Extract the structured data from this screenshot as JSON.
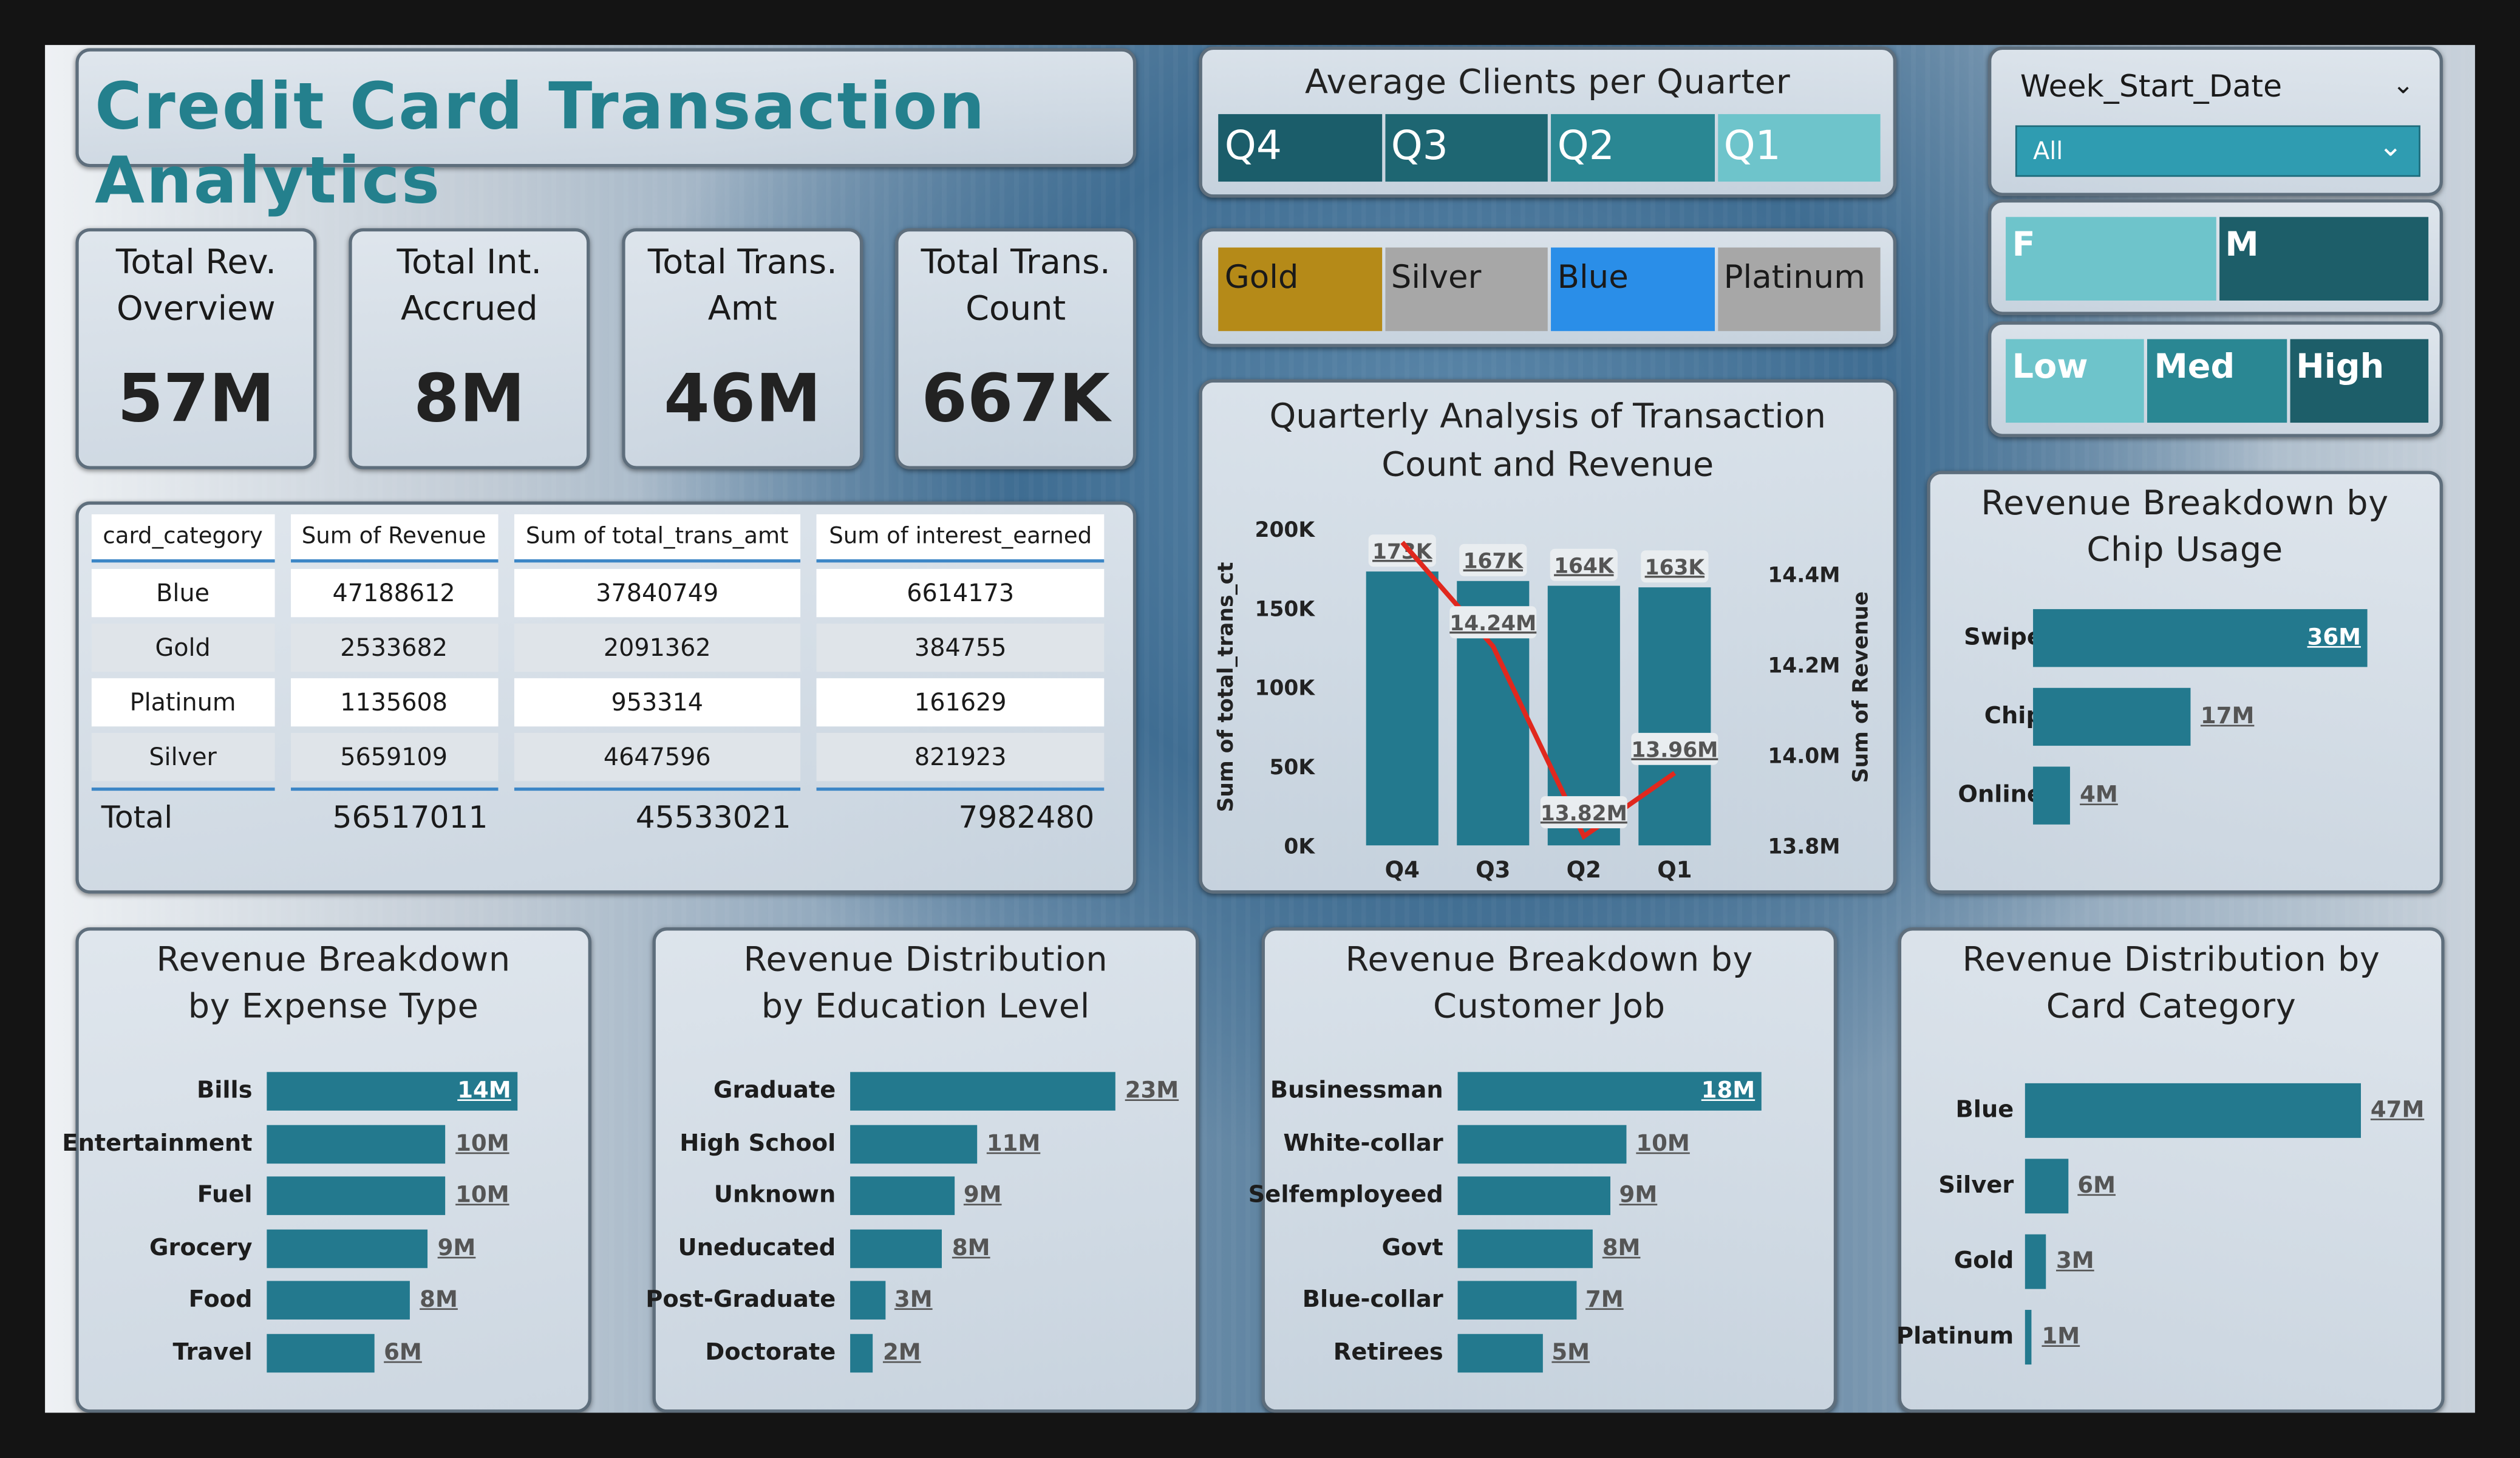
{
  "title": "Credit Card Transaction Analytics",
  "kpis": [
    {
      "label": "Total Rev.\nOverview",
      "value": "57M"
    },
    {
      "label": "Total Int.\nAccrued",
      "value": "8M"
    },
    {
      "label": "Total Trans.\nAmt",
      "value": "46M"
    },
    {
      "label": "Total Trans.\nCount",
      "value": "667K"
    }
  ],
  "avg_clients": {
    "title": "Average Clients per Quarter",
    "items": [
      "Q4",
      "Q3",
      "Q2",
      "Q1"
    ],
    "colors": [
      "#1b5d6a",
      "#1e6672",
      "#2a8793",
      "#6ec4cb"
    ]
  },
  "card_slicer": {
    "items": [
      "Gold",
      "Silver",
      "Blue",
      "Platinum"
    ],
    "colors": [
      "#b58a18",
      "#a7a7a7",
      "#2a8ee8",
      "#a7a7a7"
    ]
  },
  "week_filter": {
    "label": "Week_Start_Date",
    "value": "All"
  },
  "gender_slicer": {
    "items": [
      "F",
      "M"
    ]
  },
  "income_slicer": {
    "items": [
      "Low",
      "Med",
      "High"
    ]
  },
  "table": {
    "headers": [
      "card_category",
      "Sum of Revenue",
      "Sum of total_trans_amt",
      "Sum of interest_earned"
    ],
    "rows": [
      [
        "Blue",
        "47188612",
        "37840749",
        "6614173"
      ],
      [
        "Gold",
        "2533682",
        "2091362",
        "384755"
      ],
      [
        "Platinum",
        "1135608",
        "953314",
        "161629"
      ],
      [
        "Silver",
        "5659109",
        "4647596",
        "821923"
      ]
    ],
    "total": [
      "Total",
      "56517011",
      "45533021",
      "7982480"
    ]
  },
  "chart_data": [
    {
      "type": "bar+line",
      "title": "Quarterly Analysis of Transaction Count and Revenue",
      "categories": [
        "Q4",
        "Q3",
        "Q2",
        "Q1"
      ],
      "series": [
        {
          "name": "total_trans_ct",
          "values": [
            173000,
            167000,
            164000,
            163000
          ],
          "labels": [
            "173K",
            "167K",
            "164K",
            "163K"
          ]
        },
        {
          "name": "Revenue",
          "values": [
            14.47,
            14.24,
            13.82,
            13.96
          ],
          "labels": [
            "",
            "14.24M",
            "13.82M",
            "13.96M"
          ]
        }
      ],
      "ylabel": "Sum of total_trans_ct",
      "y2label": "Sum of Revenue",
      "ylim": [
        0,
        200000
      ],
      "y2lim": [
        13.8,
        14.5
      ],
      "yticks": [
        "0K",
        "50K",
        "100K",
        "150K",
        "200K"
      ],
      "y2ticks": [
        "13.8M",
        "14.0M",
        "14.2M",
        "14.4M"
      ]
    },
    {
      "type": "bar",
      "title": "Revenue Breakdown by Chip Usage",
      "categories": [
        "Swipe",
        "Chip",
        "Online"
      ],
      "values": [
        36,
        17,
        4
      ],
      "labels": [
        "36M",
        "17M",
        "4M"
      ]
    },
    {
      "type": "bar",
      "title": "Revenue Breakdown by Expense Type",
      "categories": [
        "Bills",
        "Entertainment",
        "Fuel",
        "Grocery",
        "Food",
        "Travel"
      ],
      "values": [
        14,
        10,
        10,
        9,
        8,
        6
      ],
      "labels": [
        "14M",
        "10M",
        "10M",
        "9M",
        "8M",
        "6M"
      ]
    },
    {
      "type": "bar",
      "title": "Revenue Distribution by Education Level",
      "categories": [
        "Graduate",
        "High School",
        "Unknown",
        "Uneducated",
        "Post-Graduate",
        "Doctorate"
      ],
      "values": [
        23,
        11,
        9,
        8,
        3,
        2
      ],
      "labels": [
        "23M",
        "11M",
        "9M",
        "8M",
        "3M",
        "2M"
      ]
    },
    {
      "type": "bar",
      "title": "Revenue Breakdown by Customer Job",
      "categories": [
        "Businessman",
        "White-collar",
        "Selfemployeed",
        "Govt",
        "Blue-collar",
        "Retirees"
      ],
      "values": [
        18,
        10,
        9,
        8,
        7,
        5
      ],
      "labels": [
        "18M",
        "10M",
        "9M",
        "8M",
        "7M",
        "5M"
      ]
    },
    {
      "type": "bar",
      "title": "Revenue Distribution by Card Category",
      "categories": [
        "Blue",
        "Silver",
        "Gold",
        "Platinum"
      ],
      "values": [
        47,
        6,
        3,
        1
      ],
      "labels": [
        "47M",
        "6M",
        "3M",
        "1M"
      ]
    }
  ]
}
